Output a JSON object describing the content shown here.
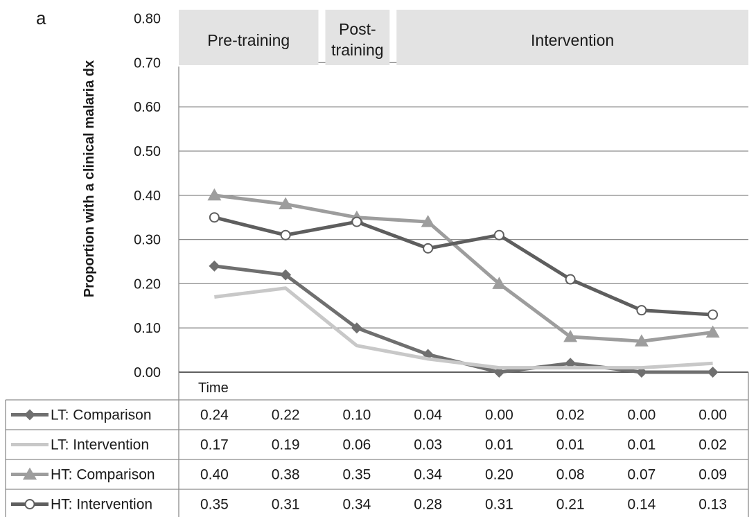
{
  "panel_label": "a",
  "chart_data": {
    "type": "line",
    "title": "",
    "xlabel": "Time",
    "ylabel": "Proportion with a clinical malaria dx",
    "ylim": [
      0,
      0.8
    ],
    "yticks": [
      "0.00",
      "0.10",
      "0.20",
      "0.30",
      "0.40",
      "0.50",
      "0.60",
      "0.70",
      "0.80"
    ],
    "grid": true,
    "phases": [
      {
        "label": "Pre-training",
        "start": 1,
        "end": 2
      },
      {
        "label": "Post-\ntraining",
        "start": 3,
        "end": 3
      },
      {
        "label": "Intervention",
        "start": 4,
        "end": 8
      }
    ],
    "x": [
      1,
      2,
      3,
      4,
      5,
      6,
      7,
      8
    ],
    "series": [
      {
        "name": "LT: Comparison",
        "color": "#6f6f6f",
        "marker": "diamond",
        "values": [
          0.24,
          0.22,
          0.1,
          0.04,
          0.0,
          0.02,
          0.0,
          0.0
        ],
        "labels": [
          "0.24",
          "0.22",
          "0.10",
          "0.04",
          "0.00",
          "0.02",
          "0.00",
          "0.00"
        ]
      },
      {
        "name": "LT: Intervention",
        "color": "#c8c8c8",
        "marker": "none",
        "values": [
          0.17,
          0.19,
          0.06,
          0.03,
          0.01,
          0.01,
          0.01,
          0.02
        ],
        "labels": [
          "0.17",
          "0.19",
          "0.06",
          "0.03",
          "0.01",
          "0.01",
          "0.01",
          "0.02"
        ]
      },
      {
        "name": "HT: Comparison",
        "color": "#9d9d9d",
        "marker": "triangle",
        "values": [
          0.4,
          0.38,
          0.35,
          0.34,
          0.2,
          0.08,
          0.07,
          0.09
        ],
        "labels": [
          "0.40",
          "0.38",
          "0.35",
          "0.34",
          "0.20",
          "0.08",
          "0.07",
          "0.09"
        ]
      },
      {
        "name": "HT: Intervention",
        "color": "#5e5e5e",
        "marker": "circle",
        "values": [
          0.35,
          0.31,
          0.34,
          0.28,
          0.31,
          0.21,
          0.14,
          0.13
        ],
        "labels": [
          "0.35",
          "0.31",
          "0.34",
          "0.28",
          "0.31",
          "0.21",
          "0.14",
          "0.13"
        ]
      }
    ]
  }
}
